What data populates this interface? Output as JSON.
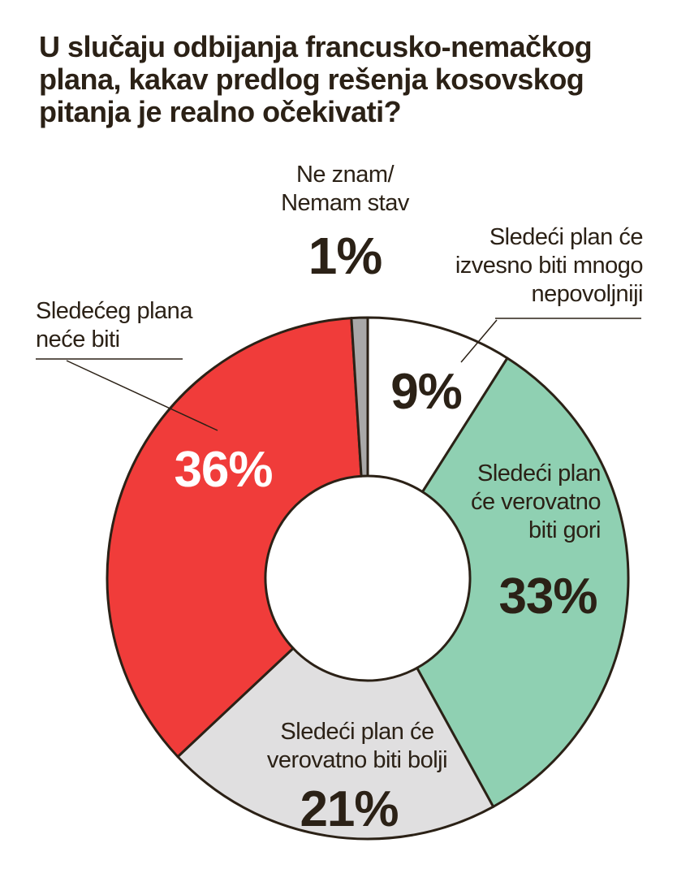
{
  "chart_data": {
    "type": "pie",
    "title": "U slučaju odbijanja francusko-nemačkog plana, kakav predlog rešenja kosovskog pitanja je realno očekivati?",
    "categories": [
      "Sledeći plan će izvesno biti mnogo nepovoljniji",
      "Sledeći plan će verovatno biti gori",
      "Sledeći plan će verovatno biti bolji",
      "Sledećeg plana neće biti",
      "Ne znam/ Nemam stav"
    ],
    "values": [
      9,
      33,
      21,
      36,
      1
    ],
    "value_labels": [
      "9%",
      "33%",
      "21%",
      "36%",
      "1%"
    ],
    "colors": [
      "#ffffff",
      "#8fd0b2",
      "#e0dfe0",
      "#f03c3a",
      "#a9a8a8"
    ],
    "legend": "none"
  },
  "labels": {
    "seg0": "Sledeći plan će\nizvesno biti mnogo\nnepovoljniji",
    "seg1": "Sledeći plan\nće verovatno\nbiti gori",
    "seg2": "Sledeći plan će\nverovatno biti bolji",
    "seg3": "Sledećeg plana\nneće biti",
    "seg4": "Ne znam/\nNemam stav"
  }
}
